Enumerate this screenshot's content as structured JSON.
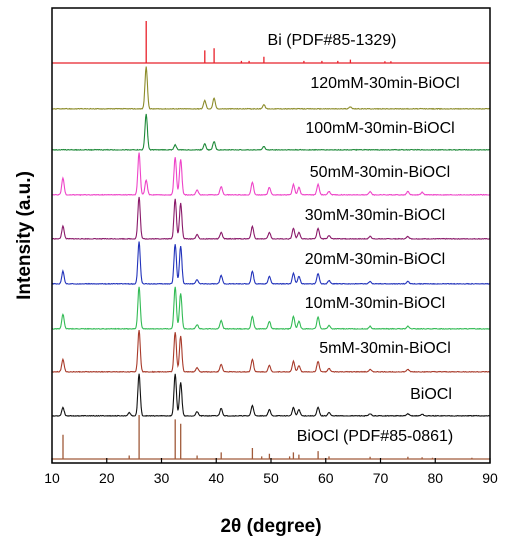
{
  "chart_data": {
    "type": "line",
    "title": "",
    "xlabel": "2θ (degree)",
    "ylabel": "Intensity (a.u.)",
    "xlim": [
      10,
      90
    ],
    "xticks": [
      10,
      20,
      30,
      40,
      50,
      60,
      70,
      80,
      90
    ],
    "y_tick_labels_shown": false,
    "grid": false,
    "legend": "inline labels above each trace",
    "series": [
      {
        "name": "Bi (PDF#85-1329)",
        "color": "#e8202a",
        "kind": "reference",
        "peaks": [
          [
            27.2,
            1.0
          ],
          [
            37.9,
            0.3
          ],
          [
            39.6,
            0.35
          ],
          [
            44.6,
            0.05
          ],
          [
            46.0,
            0.05
          ],
          [
            48.7,
            0.15
          ],
          [
            56.0,
            0.05
          ],
          [
            59.3,
            0.05
          ],
          [
            62.2,
            0.05
          ],
          [
            64.5,
            0.08
          ],
          [
            70.8,
            0.04
          ],
          [
            71.9,
            0.04
          ]
        ]
      },
      {
        "name": "120mM-30min-BiOCl",
        "color": "#8c8c2a",
        "kind": "xrd",
        "peaks": [
          [
            27.2,
            1.0
          ],
          [
            37.9,
            0.2
          ],
          [
            39.6,
            0.25
          ],
          [
            48.7,
            0.1
          ],
          [
            64.5,
            0.05
          ]
        ]
      },
      {
        "name": "100mM-30min-BiOCl",
        "color": "#1f8a3a",
        "kind": "xrd",
        "peaks": [
          [
            27.2,
            0.85
          ],
          [
            32.5,
            0.12
          ],
          [
            37.9,
            0.15
          ],
          [
            39.6,
            0.2
          ],
          [
            48.7,
            0.08
          ]
        ]
      },
      {
        "name": "50mM-30min-BiOCl",
        "color": "#ee44c8",
        "kind": "xrd",
        "peaks": [
          [
            12.0,
            0.4
          ],
          [
            25.9,
            1.0
          ],
          [
            27.2,
            0.35
          ],
          [
            32.5,
            0.9
          ],
          [
            33.5,
            0.85
          ],
          [
            36.5,
            0.12
          ],
          [
            40.9,
            0.2
          ],
          [
            46.6,
            0.3
          ],
          [
            49.7,
            0.18
          ],
          [
            54.1,
            0.25
          ],
          [
            55.1,
            0.18
          ],
          [
            58.6,
            0.25
          ],
          [
            60.6,
            0.08
          ],
          [
            68.1,
            0.08
          ],
          [
            75.0,
            0.08
          ],
          [
            77.6,
            0.06
          ]
        ]
      },
      {
        "name": "30mM-30min-BiOCl",
        "color": "#8a1a6a",
        "kind": "xrd",
        "peaks": [
          [
            12.0,
            0.3
          ],
          [
            25.9,
            1.0
          ],
          [
            32.5,
            0.95
          ],
          [
            33.5,
            0.85
          ],
          [
            36.5,
            0.1
          ],
          [
            40.9,
            0.15
          ],
          [
            46.6,
            0.3
          ],
          [
            49.7,
            0.15
          ],
          [
            54.1,
            0.25
          ],
          [
            55.1,
            0.15
          ],
          [
            58.6,
            0.25
          ],
          [
            60.6,
            0.08
          ],
          [
            68.1,
            0.06
          ],
          [
            75.0,
            0.06
          ]
        ]
      },
      {
        "name": "20mM-30min-BiOCl",
        "color": "#2233bb",
        "kind": "xrd",
        "peaks": [
          [
            12.0,
            0.3
          ],
          [
            25.9,
            1.0
          ],
          [
            32.5,
            0.95
          ],
          [
            33.5,
            0.9
          ],
          [
            36.5,
            0.1
          ],
          [
            40.9,
            0.2
          ],
          [
            46.6,
            0.3
          ],
          [
            49.7,
            0.18
          ],
          [
            54.1,
            0.25
          ],
          [
            55.1,
            0.18
          ],
          [
            58.6,
            0.25
          ],
          [
            60.6,
            0.08
          ],
          [
            68.1,
            0.06
          ],
          [
            75.0,
            0.06
          ]
        ]
      },
      {
        "name": "10mM-30min-BiOCl",
        "color": "#33bb55",
        "kind": "xrd",
        "peaks": [
          [
            12.0,
            0.35
          ],
          [
            25.9,
            1.0
          ],
          [
            32.5,
            1.0
          ],
          [
            33.5,
            0.85
          ],
          [
            36.5,
            0.1
          ],
          [
            40.9,
            0.2
          ],
          [
            46.6,
            0.3
          ],
          [
            49.7,
            0.18
          ],
          [
            54.1,
            0.3
          ],
          [
            55.1,
            0.18
          ],
          [
            58.6,
            0.28
          ],
          [
            60.6,
            0.08
          ],
          [
            68.1,
            0.06
          ],
          [
            75.0,
            0.06
          ]
        ]
      },
      {
        "name": "5mM-30min-BiOCl",
        "color": "#a83a2a",
        "kind": "xrd",
        "peaks": [
          [
            12.0,
            0.3
          ],
          [
            25.9,
            1.0
          ],
          [
            32.5,
            0.95
          ],
          [
            33.5,
            0.85
          ],
          [
            36.5,
            0.1
          ],
          [
            40.9,
            0.18
          ],
          [
            46.6,
            0.3
          ],
          [
            49.7,
            0.15
          ],
          [
            54.1,
            0.25
          ],
          [
            55.1,
            0.15
          ],
          [
            58.6,
            0.25
          ],
          [
            60.6,
            0.08
          ],
          [
            68.1,
            0.06
          ],
          [
            75.0,
            0.06
          ]
        ]
      },
      {
        "name": "BiOCl",
        "color": "#111111",
        "kind": "xrd",
        "peaks": [
          [
            12.0,
            0.2
          ],
          [
            24.1,
            0.08
          ],
          [
            25.9,
            1.0
          ],
          [
            32.5,
            1.0
          ],
          [
            33.5,
            0.8
          ],
          [
            36.5,
            0.1
          ],
          [
            40.9,
            0.18
          ],
          [
            46.6,
            0.25
          ],
          [
            49.7,
            0.15
          ],
          [
            54.1,
            0.2
          ],
          [
            55.1,
            0.15
          ],
          [
            58.6,
            0.2
          ],
          [
            60.6,
            0.08
          ],
          [
            68.1,
            0.05
          ],
          [
            75.0,
            0.05
          ],
          [
            77.6,
            0.04
          ]
        ]
      },
      {
        "name": "BiOCl (PDF#85-0861)",
        "color": "#a05a3a",
        "kind": "reference",
        "peaks": [
          [
            12.0,
            0.55
          ],
          [
            24.1,
            0.08
          ],
          [
            25.9,
            1.0
          ],
          [
            32.5,
            0.9
          ],
          [
            33.5,
            0.8
          ],
          [
            36.5,
            0.08
          ],
          [
            40.9,
            0.15
          ],
          [
            46.6,
            0.25
          ],
          [
            48.3,
            0.06
          ],
          [
            49.7,
            0.12
          ],
          [
            53.4,
            0.06
          ],
          [
            54.1,
            0.15
          ],
          [
            55.1,
            0.1
          ],
          [
            58.6,
            0.18
          ],
          [
            60.6,
            0.06
          ],
          [
            68.1,
            0.05
          ],
          [
            75.0,
            0.05
          ],
          [
            77.6,
            0.04
          ],
          [
            79.5,
            0.03
          ],
          [
            86.7,
            0.03
          ]
        ]
      }
    ]
  }
}
